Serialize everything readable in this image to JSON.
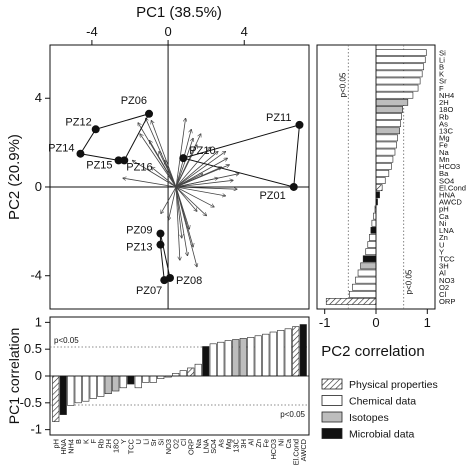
{
  "chart_data": [
    {
      "type": "scatter",
      "title": "",
      "xlabel": "PC1 (38.5%)",
      "ylabel": "PC2 (20.9%)",
      "xlim": [
        -6.2,
        7.4
      ],
      "ylim": [
        -5.5,
        6.4
      ],
      "xticks": [
        -4,
        0,
        4
      ],
      "yticks": [
        -4,
        0,
        4
      ],
      "points": [
        {
          "label": "PZ06",
          "x": -1.0,
          "y": 3.3
        },
        {
          "label": "PZ12",
          "x": -3.8,
          "y": 2.6
        },
        {
          "label": "PZ14",
          "x": -4.6,
          "y": 1.5
        },
        {
          "label": "PZ15",
          "x": -2.6,
          "y": 1.2
        },
        {
          "label": "PZ16",
          "x": -2.3,
          "y": 1.2
        },
        {
          "label": "PZ10",
          "x": 0.8,
          "y": 1.3
        },
        {
          "label": "PZ11",
          "x": 6.9,
          "y": 2.8
        },
        {
          "label": "PZ01",
          "x": 6.6,
          "y": 0.0
        },
        {
          "label": "PZ09",
          "x": -0.4,
          "y": -2.1
        },
        {
          "label": "PZ13",
          "x": -0.4,
          "y": -2.6
        },
        {
          "label": "PZ08",
          "x": 0.1,
          "y": -4.1
        },
        {
          "label": "PZ07",
          "x": -0.2,
          "y": -4.2
        }
      ],
      "loadings": [
        [
          -1.6,
          3.1
        ],
        [
          -2.0,
          2.9
        ],
        [
          -1.3,
          3.0
        ],
        [
          -1.9,
          2.4
        ],
        [
          -1.4,
          2.1
        ],
        [
          -2.3,
          1.2
        ],
        [
          -2.8,
          0.4
        ],
        [
          -1.3,
          0.9
        ],
        [
          -0.9,
          1.6
        ],
        [
          -0.6,
          1.2
        ],
        [
          0.5,
          3.1
        ],
        [
          0.8,
          2.6
        ],
        [
          1.3,
          2.4
        ],
        [
          1.1,
          1.9
        ],
        [
          0.9,
          2.2
        ],
        [
          2.2,
          1.6
        ],
        [
          2.8,
          1.0
        ],
        [
          2.6,
          1.6
        ],
        [
          3.3,
          0.6
        ],
        [
          2.4,
          0.9
        ],
        [
          3.0,
          0.3
        ],
        [
          2.2,
          0.4
        ],
        [
          2.7,
          1.3
        ],
        [
          1.8,
          1.8
        ],
        [
          1.4,
          0.6
        ],
        [
          3.2,
          -0.1
        ],
        [
          2.6,
          -0.4
        ],
        [
          2.0,
          -0.9
        ],
        [
          1.6,
          -1.3
        ],
        [
          1.1,
          -1.1
        ],
        [
          0.7,
          -1.9
        ],
        [
          0.3,
          -2.3
        ],
        [
          -0.4,
          -1.5
        ],
        [
          -0.8,
          -1.2
        ],
        [
          0.6,
          -3.1
        ],
        [
          0.2,
          -3.3
        ],
        [
          0.9,
          -2.7
        ],
        [
          1.1,
          -3.6
        ]
      ]
    },
    {
      "type": "bar",
      "orientation": "horizontal",
      "xlabel": "PC2 correlation",
      "xticks": [
        -1,
        0,
        1
      ],
      "xlim": [
        -1.15,
        1.15
      ],
      "threshold": 0.54,
      "threshold_label": "p<0.05",
      "categories": [
        "Si",
        "Li",
        "B",
        "K",
        "Sr",
        "F",
        "NH4",
        "2H",
        "18O",
        "Rb",
        "As",
        "13C",
        "Mg",
        "Fe",
        "Na",
        "Mn",
        "HCO3",
        "Ba",
        "SO4",
        "El.Cond",
        "HNA",
        "AWCD",
        "pH",
        "Ca",
        "Ni",
        "LNA",
        "Zn",
        "U",
        "Y",
        "TCC",
        "3H",
        "Al",
        "NO3",
        "O2",
        "Cl",
        "ORP"
      ],
      "values": [
        0.98,
        0.96,
        0.93,
        0.9,
        0.86,
        0.82,
        0.72,
        0.62,
        0.52,
        0.5,
        0.48,
        0.46,
        0.42,
        0.4,
        0.37,
        0.33,
        0.3,
        0.25,
        0.18,
        0.12,
        0.07,
        0.03,
        -0.02,
        -0.05,
        -0.08,
        -0.1,
        -0.13,
        -0.16,
        -0.2,
        -0.25,
        -0.3,
        -0.35,
        -0.4,
        -0.46,
        -0.52,
        -0.97
      ],
      "groups": [
        "chem",
        "chem",
        "chem",
        "chem",
        "chem",
        "chem",
        "chem",
        "iso",
        "iso",
        "chem",
        "chem",
        "iso",
        "chem",
        "chem",
        "chem",
        "chem",
        "chem",
        "chem",
        "chem",
        "phys",
        "micro",
        "micro",
        "phys",
        "chem",
        "chem",
        "micro",
        "chem",
        "chem",
        "chem",
        "micro",
        "iso",
        "chem",
        "chem",
        "chem",
        "chem",
        "phys"
      ]
    },
    {
      "type": "bar",
      "xlabel": "",
      "ylabel": "PC1 correlation",
      "yticks": [
        -1,
        -0.5,
        0,
        0.5,
        1
      ],
      "ylim": [
        -1.1,
        1.1
      ],
      "threshold": 0.54,
      "threshold_label": "p<0.05",
      "categories": [
        "pH",
        "HNA",
        "NH4",
        "B",
        "K",
        "F",
        "Rb",
        "2H",
        "18O",
        "Y",
        "TCC",
        "U",
        "Li",
        "Sr",
        "Si",
        "NO3",
        "O2",
        "Cl",
        "ORP",
        "Na",
        "LNA",
        "SO4",
        "As",
        "Mg",
        "13C",
        "3H",
        "Al",
        "Zn",
        "Fe",
        "HCO3",
        "Ni",
        "Ca",
        "El.Cond",
        "AWCD"
      ],
      "values": [
        -0.85,
        -0.72,
        -0.55,
        -0.5,
        -0.47,
        -0.42,
        -0.38,
        -0.33,
        -0.28,
        -0.22,
        -0.15,
        -0.22,
        -0.12,
        -0.12,
        -0.05,
        -0.02,
        0.05,
        0.1,
        0.15,
        0.22,
        0.55,
        0.6,
        0.63,
        0.66,
        0.68,
        0.7,
        0.72,
        0.75,
        0.78,
        0.82,
        0.85,
        0.88,
        0.92,
        0.96
      ],
      "groups": [
        "phys",
        "micro",
        "chem",
        "chem",
        "chem",
        "chem",
        "chem",
        "iso",
        "iso",
        "chem",
        "micro",
        "chem",
        "chem",
        "chem",
        "chem",
        "chem",
        "chem",
        "chem",
        "phys",
        "chem",
        "micro",
        "chem",
        "chem",
        "chem",
        "iso",
        "iso",
        "chem",
        "chem",
        "chem",
        "chem",
        "chem",
        "chem",
        "phys",
        "micro"
      ]
    }
  ],
  "legend": [
    {
      "key": "phys",
      "label": "Physical properties"
    },
    {
      "key": "chem",
      "label": "Chemical data"
    },
    {
      "key": "iso",
      "label": "Isotopes"
    },
    {
      "key": "micro",
      "label": "Microbial data"
    }
  ],
  "colors": {
    "chem": "#ffffff",
    "iso": "#bdbdbd",
    "micro": "#111111",
    "stroke": "#222222"
  }
}
